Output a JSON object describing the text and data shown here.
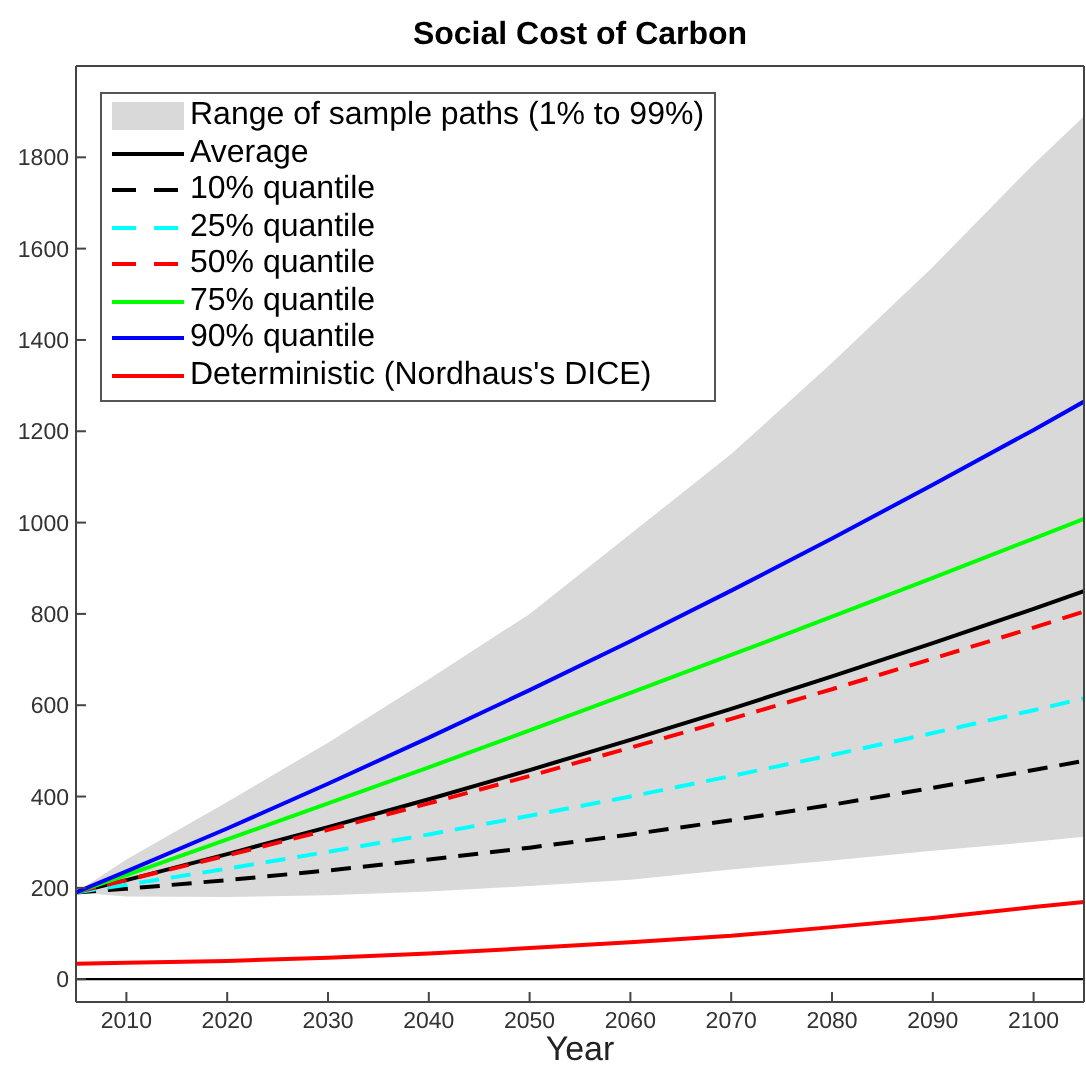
{
  "chart_data": {
    "type": "line",
    "title": "Social Cost of Carbon",
    "xlabel": "Year",
    "x": [
      2005,
      2010,
      2020,
      2030,
      2040,
      2050,
      2060,
      2070,
      2080,
      2090,
      2100,
      2105
    ],
    "xlim": [
      2005,
      2105
    ],
    "xticks": [
      2010,
      2020,
      2030,
      2040,
      2050,
      2060,
      2070,
      2080,
      2090,
      2100
    ],
    "ylim": [
      -50,
      2000
    ],
    "yticks": [
      0,
      200,
      400,
      600,
      800,
      1000,
      1200,
      1400,
      1600,
      1800
    ],
    "legend": "top left",
    "marker": "none",
    "ref_lines": [
      {
        "axis": "y",
        "value": 0,
        "color": "#000000"
      }
    ],
    "series": [
      {
        "name": "Range of sample paths (1% to 99%)",
        "type": "area",
        "color": "#d9d9d9",
        "values": [
          null,
          null,
          null,
          null,
          null,
          null,
          null,
          null,
          null,
          null,
          null,
          null
        ],
        "lower": [
          190,
          181,
          180,
          184,
          192,
          204,
          218,
          240,
          260,
          281,
          301,
          312
        ],
        "upper": [
          190,
          262,
          388,
          518,
          657,
          800,
          975,
          1150,
          1350,
          1560,
          1785,
          1890
        ]
      },
      {
        "name": "Average",
        "color": "#000000",
        "values": [
          190,
          217,
          274,
          333,
          394,
          458,
          524,
          592,
          663,
          736,
          811,
          850
        ]
      },
      {
        "name": "10% quantile",
        "color": "#000000",
        "line_style": "dashed",
        "values": [
          190,
          198,
          217,
          238,
          262,
          288,
          317,
          348,
          382,
          419,
          458,
          478
        ]
      },
      {
        "name": "25% quantile",
        "color": "#00ffff",
        "line_style": "dashed",
        "values": [
          190,
          207,
          242,
          279,
          317,
          358,
          400,
          445,
          491,
          539,
          589,
          615
        ]
      },
      {
        "name": "50% quantile",
        "color": "#ff0000",
        "line_style": "dashed",
        "values": [
          190,
          217,
          271,
          327,
          385,
          445,
          507,
          570,
          635,
          702,
          770,
          805
        ]
      },
      {
        "name": "75% quantile",
        "color": "#00ff00",
        "values": [
          190,
          228,
          306,
          385,
          464,
          545,
          627,
          710,
          794,
          879,
          965,
          1008
        ]
      },
      {
        "name": "90% quantile",
        "color": "#0000ff",
        "values": [
          190,
          236,
          330,
          428,
          529,
          633,
          740,
          851,
          965,
          1083,
          1203,
          1265
        ]
      },
      {
        "name": "Deterministic (Nordhaus's DICE)",
        "color": "#ff0000",
        "values": [
          34,
          36,
          40,
          47,
          56,
          68,
          81,
          95,
          114,
          134,
          158,
          169
        ]
      }
    ]
  }
}
